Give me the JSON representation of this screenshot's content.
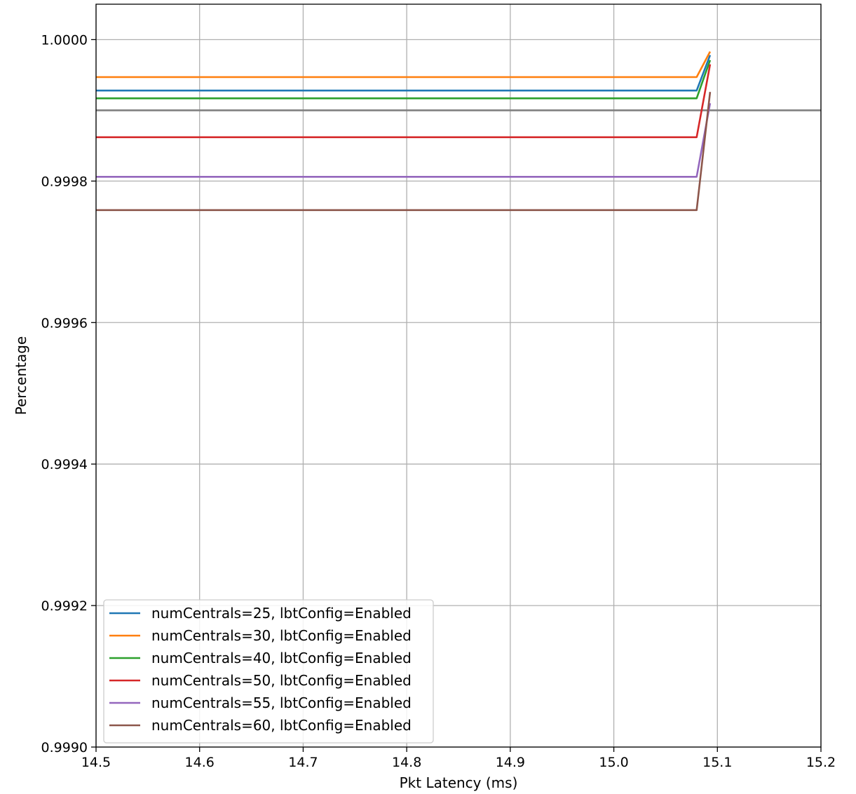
{
  "chart_data": {
    "type": "line",
    "title": "",
    "xlabel": "Pkt Latency (ms)",
    "ylabel": "Percentage",
    "xlim": [
      14.5,
      15.2
    ],
    "ylim": [
      0.999,
      1.00005
    ],
    "x_ticks": [
      14.5,
      14.6,
      14.7,
      14.8,
      14.9,
      15.0,
      15.1,
      15.2
    ],
    "x_tick_labels": [
      "14.5",
      "14.6",
      "14.7",
      "14.8",
      "14.9",
      "15.0",
      "15.1",
      "15.2"
    ],
    "y_ticks": [
      0.999,
      0.9992,
      0.9994,
      0.9996,
      0.9998,
      1.0
    ],
    "y_tick_labels": [
      "0.9990",
      "0.9992",
      "0.9994",
      "0.9996",
      "0.9998",
      "1.0000"
    ],
    "grid": true,
    "legend_position": "lower-left",
    "reference_line": {
      "y": 0.9999,
      "color": "#808080"
    },
    "series": [
      {
        "name": "numCentrals=25, lbtConfig=Enabled",
        "color": "#1f77b4",
        "x": [
          14.5,
          15.08,
          15.093
        ],
        "y": [
          0.999928,
          0.999928,
          0.999978
        ]
      },
      {
        "name": "numCentrals=30, lbtConfig=Enabled",
        "color": "#ff7f0e",
        "x": [
          14.5,
          15.08,
          15.093
        ],
        "y": [
          0.999947,
          0.999947,
          0.999983
        ]
      },
      {
        "name": "numCentrals=40, lbtConfig=Enabled",
        "color": "#2ca02c",
        "x": [
          14.5,
          15.08,
          15.093
        ],
        "y": [
          0.999917,
          0.999917,
          0.999971
        ]
      },
      {
        "name": "numCentrals=50, lbtConfig=Enabled",
        "color": "#d62728",
        "x": [
          14.5,
          15.08,
          15.093
        ],
        "y": [
          0.999862,
          0.999862,
          0.999965
        ]
      },
      {
        "name": "numCentrals=55, lbtConfig=Enabled",
        "color": "#9467bd",
        "x": [
          14.5,
          15.08,
          15.093
        ],
        "y": [
          0.999806,
          0.999806,
          0.99991
        ]
      },
      {
        "name": "numCentrals=60, lbtConfig=Enabled",
        "color": "#8c564b",
        "x": [
          14.5,
          15.08,
          15.093
        ],
        "y": [
          0.999759,
          0.999759,
          0.999926
        ]
      }
    ]
  }
}
